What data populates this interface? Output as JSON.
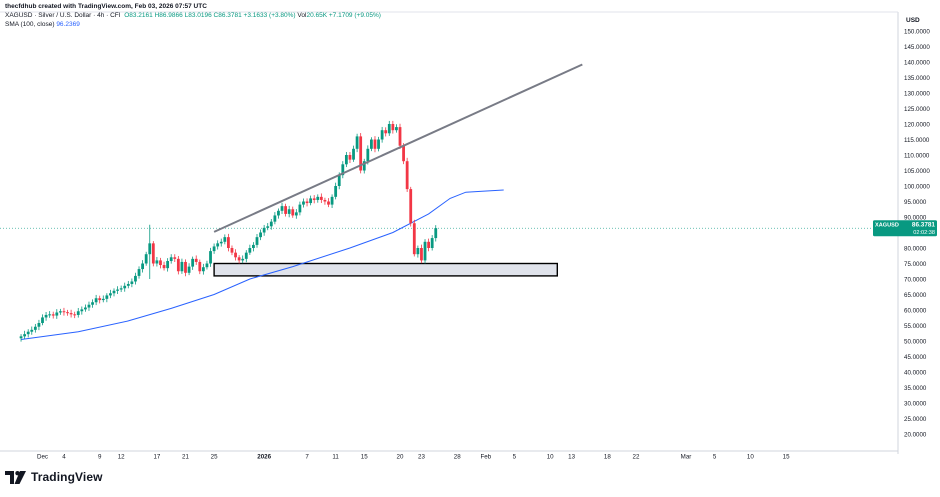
{
  "header": {
    "credit": "thecfdhub created with TradingView.com, Feb 03, 2026 07:57 UTC",
    "symbol_line": "XAGUSD · Silver / U.S. Dollar · 4h · CFI",
    "ohlc": {
      "o": "O83.2161",
      "h": "H86.9866",
      "l": "L83.0196",
      "c": "C86.3781",
      "chg": "+3.1633 (+3.80%)"
    },
    "vol_label": "Vol",
    "vol_value": "20.65K",
    "vol_chg": "+7.1709 (+9.05%)",
    "sma_label": "SMA (100, close)",
    "sma_value": "96.2369"
  },
  "currency": "USD",
  "price_tag": {
    "symbol": "XAGUSD",
    "price": "86.3781",
    "countdown": "02:02:38"
  },
  "brand": {
    "name": "TradingView"
  },
  "colors": {
    "up": "#089981",
    "down": "#f23645",
    "sma": "#2962ff",
    "trendline": "#787b86",
    "zone_fill": "#e0e3eb",
    "zone_stroke": "#000000"
  },
  "chart_data": {
    "type": "candlestick",
    "timeframe": "4h",
    "ylim": [
      15,
      155
    ],
    "y_ticks": [
      20,
      25,
      30,
      35,
      40,
      45,
      50,
      55,
      60,
      65,
      70,
      75,
      80,
      85,
      90,
      95,
      100,
      105,
      110,
      115,
      120,
      125,
      130,
      135,
      140,
      145,
      150
    ],
    "x_ticks": [
      {
        "label": "Dec",
        "day": 0
      },
      {
        "label": "4",
        "day": 3
      },
      {
        "label": "9",
        "day": 8
      },
      {
        "label": "12",
        "day": 11
      },
      {
        "label": "17",
        "day": 16
      },
      {
        "label": "21",
        "day": 20
      },
      {
        "label": "25",
        "day": 24
      },
      {
        "label": "2026",
        "day": 31
      },
      {
        "label": "7",
        "day": 37
      },
      {
        "label": "11",
        "day": 41
      },
      {
        "label": "15",
        "day": 45
      },
      {
        "label": "20",
        "day": 50
      },
      {
        "label": "23",
        "day": 53
      },
      {
        "label": "28",
        "day": 58
      },
      {
        "label": "Feb",
        "day": 62
      },
      {
        "label": "5",
        "day": 66
      },
      {
        "label": "10",
        "day": 71
      },
      {
        "label": "13",
        "day": 74
      },
      {
        "label": "18",
        "day": 79
      },
      {
        "label": "22",
        "day": 83
      },
      {
        "label": "Mar",
        "day": 90
      },
      {
        "label": "5",
        "day": 94
      },
      {
        "label": "10",
        "day": 99
      },
      {
        "label": "15",
        "day": 104
      }
    ],
    "close_series": {
      "start_day": -3,
      "step_days": 0.5,
      "values": [
        51.5,
        52.2,
        53.0,
        53.6,
        54.6,
        55.8,
        57.6,
        58.4,
        58.6,
        58.2,
        59.2,
        59.6,
        59.3,
        59.0,
        58.6,
        58.4,
        59.6,
        60.2,
        60.8,
        61.7,
        62.5,
        63.8,
        63.2,
        63.6,
        64.7,
        65.4,
        66.2,
        66.6,
        67.0,
        67.8,
        68.4,
        69.2,
        71.0,
        73.2,
        75.0,
        78.0,
        81.5,
        75.0,
        76.0,
        74.5,
        73.5,
        75.8,
        77.0,
        76.5,
        72.5,
        75.5,
        72.0,
        74.0,
        76.5,
        75.5,
        72.5,
        73.8,
        75.0,
        79.0,
        80.5,
        81.5,
        82.0,
        83.5,
        80.0,
        78.5,
        77.0,
        76.0,
        76.5,
        78.5,
        80.0,
        81.0,
        83.5,
        85.0,
        86.5,
        87.0,
        88.5,
        90.5,
        92.0,
        93.5,
        91.0,
        92.5,
        90.5,
        91.5,
        94.0,
        95.0,
        94.5,
        96.0,
        95.5,
        96.5,
        95.5,
        95.0,
        94.0,
        96.5,
        100.0,
        103.5,
        107.0,
        110.0,
        108.5,
        112.0,
        116.0,
        105.0,
        108.0,
        112.0,
        115.0,
        112.0,
        115.0,
        118.0,
        117.0,
        120.0,
        118.0,
        119.0,
        113.0,
        108.0,
        99.0,
        88.0,
        78.0,
        80.0,
        76.0,
        82.0,
        80.0,
        83.2,
        86.4
      ]
    },
    "spikes": [
      {
        "day": 15.0,
        "high": 87.5,
        "low": 70.0
      },
      {
        "day": 55.5,
        "high": 121.0,
        "low": 102.0
      },
      {
        "day": 56.5,
        "high": 121.7,
        "low": 104.0
      },
      {
        "day": 60.0,
        "high": 118.0,
        "low": 84.0
      },
      {
        "day": 61.0,
        "high": 96.0,
        "low": 71.0
      },
      {
        "day": 61.5,
        "high": 90.0,
        "low": 72.0
      }
    ],
    "sma": {
      "name": "SMA (100, close)",
      "points": [
        [
          -3,
          50.5
        ],
        [
          5,
          53.0
        ],
        [
          12,
          56.5
        ],
        [
          18,
          60.5
        ],
        [
          24,
          65.0
        ],
        [
          29,
          70.0
        ],
        [
          35,
          74.0
        ],
        [
          43,
          80.0
        ],
        [
          49,
          85.0
        ],
        [
          54,
          91.0
        ],
        [
          57,
          96.0
        ],
        [
          59.2,
          98.0
        ],
        [
          61.5,
          98.3
        ],
        [
          64.5,
          98.7
        ]
      ]
    },
    "trendline": {
      "start": [
        24.0,
        85.2
      ],
      "end": [
        75.5,
        139.2
      ]
    },
    "support_zone": {
      "from_day": 24.0,
      "to_day": 72.0,
      "low": 71.0,
      "high": 75.0
    },
    "last_price": 86.3781
  }
}
